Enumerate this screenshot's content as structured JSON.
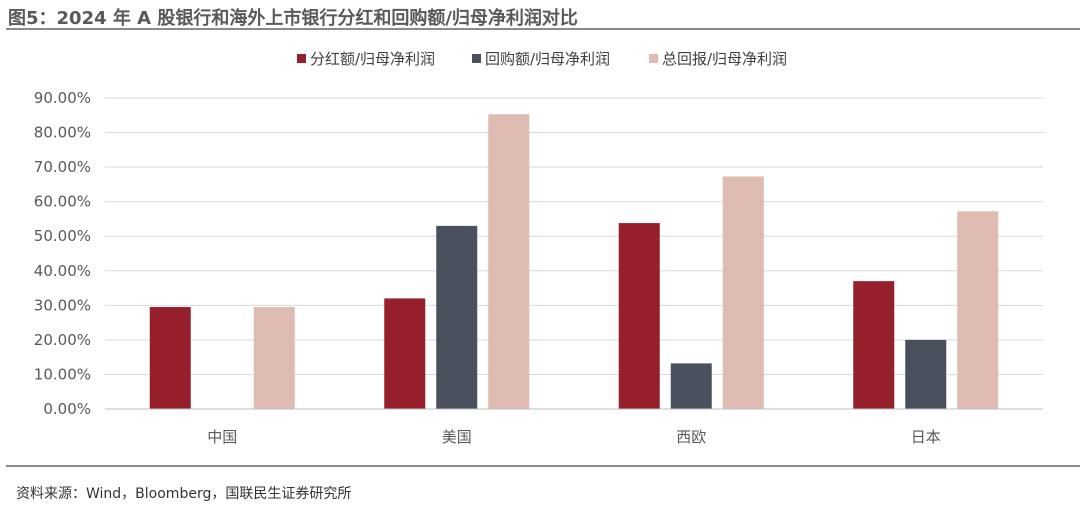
{
  "header": {
    "title": "图5：2024 年 A 股银行和海外上市银行分红和回购额/归母净利润对比"
  },
  "footer": {
    "source": "资料来源：Wind，Bloomberg，国联民生证券研究所"
  },
  "chart_data": {
    "type": "bar",
    "title": "图5：2024 年 A 股银行和海外上市银行分红和回购额/归母净利润对比",
    "xlabel": "",
    "ylabel": "",
    "categories": [
      "中国",
      "美国",
      "西欧",
      "日本"
    ],
    "series": [
      {
        "name": "分红额/归母净利润",
        "values": [
          29.5,
          32.0,
          53.8,
          37.0
        ],
        "color": "#951f2b"
      },
      {
        "name": "回购额/归母净利润",
        "values": [
          0.0,
          53.0,
          13.2,
          20.0
        ],
        "color": "#4a505e"
      },
      {
        "name": "总回报/归母净利润",
        "values": [
          29.5,
          85.3,
          67.3,
          57.2
        ],
        "color": "#dfbcb1"
      }
    ],
    "ylim": [
      0,
      90
    ],
    "yticks": [
      "0.00%",
      "10.00%",
      "20.00%",
      "30.00%",
      "40.00%",
      "50.00%",
      "60.00%",
      "70.00%",
      "80.00%",
      "90.00%"
    ],
    "grid": true,
    "legend_position": "top-center"
  }
}
